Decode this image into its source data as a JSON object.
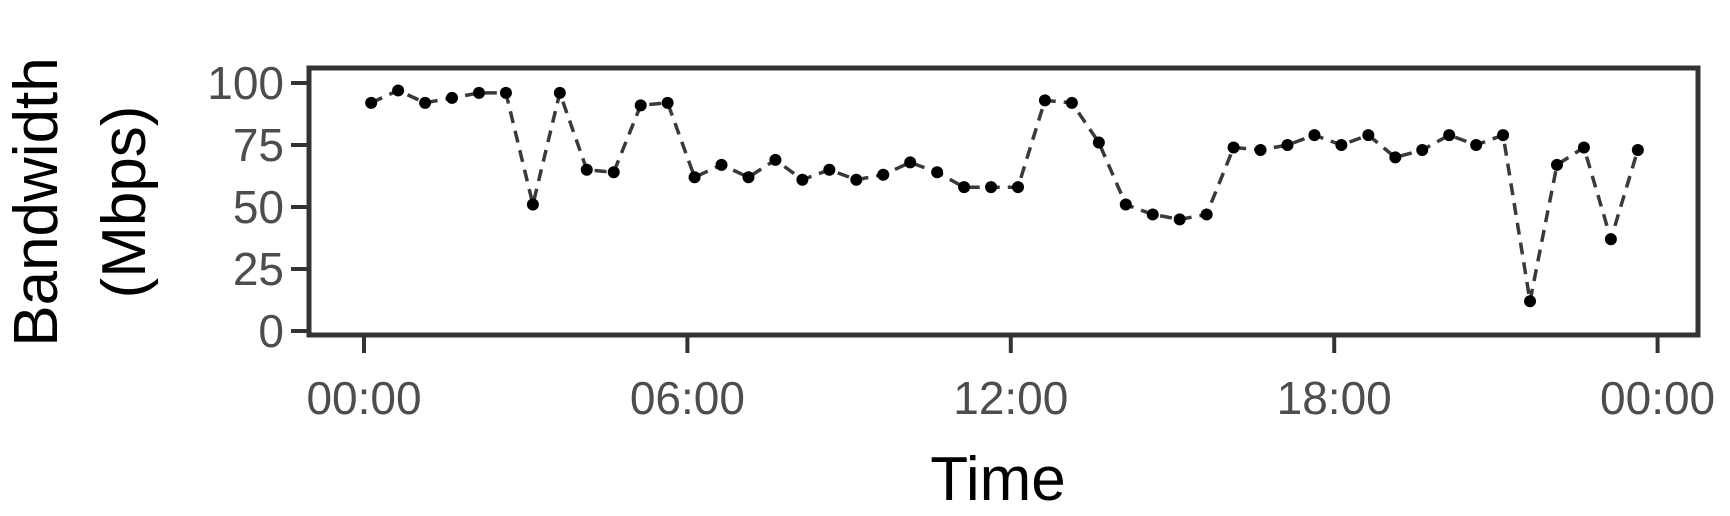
{
  "chart_data": {
    "type": "line",
    "xlabel": "Time",
    "ylabel_lines": [
      "Bandwidth",
      "(Mbps)"
    ],
    "ylim": [
      0,
      100
    ],
    "yticks": [
      0,
      25,
      50,
      75,
      100
    ],
    "xlim_hours": [
      -2.5,
      24.75
    ],
    "xticks": [
      {
        "hour": 0,
        "label": "00:00"
      },
      {
        "hour": 6,
        "label": "06:00"
      },
      {
        "hour": 12,
        "label": "12:00"
      },
      {
        "hour": 18,
        "label": "18:00"
      },
      {
        "hour": 24,
        "label": "00:00"
      }
    ],
    "series": [
      {
        "line_style": "dashed",
        "line_color": "#3a3a3a",
        "marker_color": "#000000",
        "x": [
          "00:08",
          "00:38",
          "01:08",
          "01:38",
          "02:08",
          "02:38",
          "03:08",
          "03:38",
          "04:08",
          "04:38",
          "05:08",
          "05:38",
          "06:08",
          "06:38",
          "07:08",
          "07:38",
          "08:08",
          "08:38",
          "09:08",
          "09:38",
          "10:08",
          "10:38",
          "11:08",
          "11:38",
          "12:08",
          "12:38",
          "13:08",
          "13:38",
          "14:08",
          "14:38",
          "15:08",
          "15:38",
          "16:08",
          "16:38",
          "17:08",
          "17:38",
          "18:08",
          "18:38",
          "19:08",
          "19:38",
          "20:08",
          "20:38",
          "21:08",
          "21:38",
          "22:08",
          "22:38",
          "23:08",
          "23:38"
        ],
        "y": [
          92,
          97,
          92,
          94,
          96,
          96,
          51,
          96,
          65,
          64,
          91,
          92,
          62,
          67,
          62,
          69,
          61,
          65,
          61,
          63,
          68,
          64,
          58,
          58,
          58,
          93,
          92,
          76,
          51,
          47,
          45,
          47,
          74,
          73,
          75,
          79,
          75,
          79,
          70,
          73,
          79,
          75,
          79,
          12,
          67,
          74,
          37,
          73
        ]
      }
    ]
  }
}
